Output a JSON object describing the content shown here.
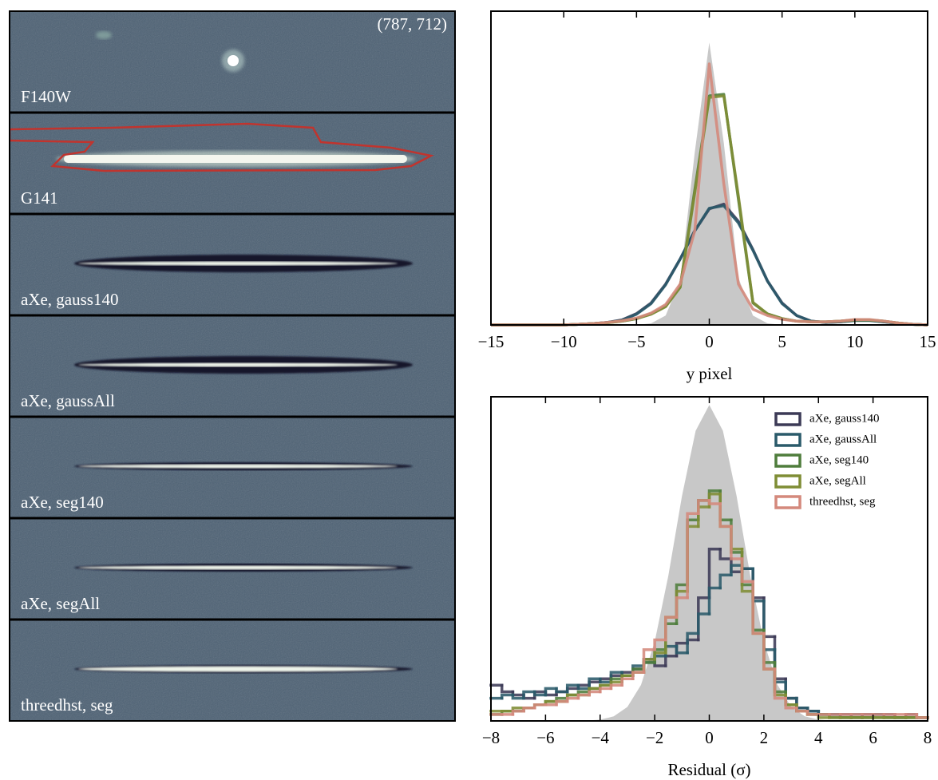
{
  "image_panels": {
    "coordinate": "(787, 712)",
    "labels": [
      "F140W",
      "G141",
      "aXe, gauss140",
      "aXe, gaussAll",
      "aXe, seg140",
      "aXe, segAll",
      "threedhst, seg"
    ]
  },
  "chart_data": [
    {
      "type": "line",
      "xlabel": "y pixel",
      "x": [
        -15,
        -14,
        -13,
        -12,
        -11,
        -10,
        -9,
        -8,
        -7,
        -6,
        -5,
        -4,
        -3,
        -2,
        -1,
        0,
        1,
        2,
        3,
        4,
        5,
        6,
        7,
        8,
        9,
        10,
        11,
        12,
        13,
        14,
        15
      ],
      "series": [
        {
          "color": "#c8c8c8",
          "fill": true,
          "values": [
            0,
            0,
            0,
            0,
            0,
            0,
            0,
            0,
            0,
            0,
            0,
            0.005,
            0.03,
            0.14,
            0.55,
            0.9,
            0.58,
            0.15,
            0.03,
            0.005,
            0,
            0,
            0,
            0,
            0,
            0,
            0,
            0,
            0,
            0,
            0
          ]
        },
        {
          "color": "#3c3a56",
          "values": [
            0,
            0,
            0,
            0,
            0,
            0,
            0.002,
            0.004,
            0.008,
            0.016,
            0.036,
            0.07,
            0.13,
            0.21,
            0.3,
            0.37,
            0.385,
            0.33,
            0.24,
            0.14,
            0.07,
            0.03,
            0.012,
            0.008,
            0.01,
            0.015,
            0.015,
            0.01,
            0.005,
            0.002,
            0
          ]
        },
        {
          "color": "#2a5a6a",
          "values": [
            0,
            0,
            0,
            0,
            0,
            0,
            0.002,
            0.004,
            0.008,
            0.015,
            0.034,
            0.068,
            0.128,
            0.21,
            0.3,
            0.372,
            0.38,
            0.325,
            0.238,
            0.14,
            0.068,
            0.03,
            0.012,
            0.008,
            0.01,
            0.014,
            0.014,
            0.01,
            0.005,
            0.002,
            0
          ]
        },
        {
          "color": "#4f7d3c",
          "values": [
            0,
            0,
            0,
            0,
            0,
            0,
            0.002,
            0.004,
            0.007,
            0.012,
            0.02,
            0.035,
            0.06,
            0.12,
            0.43,
            0.73,
            0.735,
            0.4,
            0.07,
            0.035,
            0.02,
            0.012,
            0.01,
            0.01,
            0.012,
            0.016,
            0.016,
            0.012,
            0.006,
            0.002,
            0
          ]
        },
        {
          "color": "#7f8d35",
          "values": [
            0,
            0,
            0,
            0,
            0,
            0,
            0.002,
            0.004,
            0.007,
            0.012,
            0.02,
            0.034,
            0.058,
            0.12,
            0.42,
            0.725,
            0.73,
            0.41,
            0.072,
            0.035,
            0.02,
            0.012,
            0.01,
            0.01,
            0.012,
            0.016,
            0.016,
            0.012,
            0.006,
            0.002,
            0
          ]
        },
        {
          "color": "#d4897c",
          "values": [
            0,
            0,
            0,
            0,
            0,
            0,
            0.002,
            0.004,
            0.008,
            0.013,
            0.022,
            0.038,
            0.065,
            0.13,
            0.3,
            0.832,
            0.45,
            0.13,
            0.05,
            0.03,
            0.018,
            0.012,
            0.01,
            0.01,
            0.012,
            0.017,
            0.017,
            0.012,
            0.006,
            0.002,
            0
          ]
        }
      ],
      "xlim": [
        -15,
        15
      ],
      "ylim": [
        0,
        1
      ],
      "xticks": [
        {
          "value": -15,
          "label": "−15"
        },
        {
          "value": -10,
          "label": "−10"
        },
        {
          "value": -5,
          "label": "−5"
        },
        0,
        5,
        10,
        15
      ]
    },
    {
      "type": "histogram",
      "xlabel": "Residual (σ)",
      "bins": [
        -8,
        -7.6,
        -7.2,
        -6.8,
        -6.4,
        -6,
        -5.6,
        -5.2,
        -4.8,
        -4.4,
        -4,
        -3.6,
        -3.2,
        -2.8,
        -2.4,
        -2,
        -1.6,
        -1.2,
        -0.8,
        -0.4,
        0,
        0.4,
        0.8,
        1.2,
        1.6,
        2,
        2.4,
        2.8,
        3.2,
        3.6,
        4,
        4.4,
        4.8,
        5.2,
        5.6,
        6,
        6.4,
        6.8,
        7.2,
        7.6,
        8
      ],
      "reference": {
        "color": "#c8c8c8",
        "x": [
          -8,
          -7.5,
          -7,
          -6.5,
          -6,
          -5.5,
          -5,
          -4.5,
          -4,
          -3.5,
          -3,
          -2.5,
          -2,
          -1.5,
          -1,
          -0.5,
          0,
          0.5,
          1,
          1.5,
          2,
          2.5,
          3,
          3.5,
          4,
          4.5,
          5,
          5.5,
          6,
          6.5,
          7,
          7.5,
          8
        ],
        "values": [
          0,
          0,
          0,
          0,
          0,
          0,
          0,
          0.001,
          0.004,
          0.014,
          0.043,
          0.111,
          0.244,
          0.448,
          0.694,
          0.895,
          0.975,
          0.895,
          0.694,
          0.448,
          0.244,
          0.111,
          0.043,
          0.014,
          0.004,
          0.001,
          0,
          0,
          0,
          0,
          0,
          0,
          0
        ]
      },
      "series": [
        {
          "name": "aXe, gauss140",
          "color": "#3c3a56",
          "values": [
            0.11,
            0.09,
            0.08,
            0.07,
            0.09,
            0.08,
            0.09,
            0.1,
            0.11,
            0.12,
            0.13,
            0.14,
            0.15,
            0.16,
            0.19,
            0.17,
            0.2,
            0.24,
            0.25,
            0.38,
            0.53,
            0.5,
            0.46,
            0.47,
            0.38,
            0.26,
            0.13,
            0.07,
            0.04,
            0.03,
            0.02,
            0.02,
            0.02,
            0.01,
            0.02,
            0.02,
            0.02,
            0.01,
            0.02,
            0.01
          ]
        },
        {
          "name": "aXe, gaussAll",
          "color": "#2a5a6a",
          "values": [
            0.07,
            0.08,
            0.07,
            0.09,
            0.08,
            0.1,
            0.09,
            0.11,
            0.1,
            0.13,
            0.12,
            0.15,
            0.14,
            0.17,
            0.18,
            0.2,
            0.23,
            0.21,
            0.27,
            0.33,
            0.41,
            0.45,
            0.48,
            0.47,
            0.37,
            0.22,
            0.12,
            0.07,
            0.04,
            0.03,
            0.02,
            0.02,
            0.01,
            0.02,
            0.01,
            0.02,
            0.01,
            0.01,
            0.01,
            0.01
          ]
        },
        {
          "name": "aXe, seg140",
          "color": "#4f7d3c",
          "values": [
            0.02,
            0.03,
            0.03,
            0.04,
            0.05,
            0.06,
            0.07,
            0.08,
            0.09,
            0.1,
            0.11,
            0.13,
            0.14,
            0.16,
            0.18,
            0.22,
            0.3,
            0.42,
            0.62,
            0.68,
            0.71,
            0.62,
            0.52,
            0.42,
            0.28,
            0.18,
            0.09,
            0.05,
            0.03,
            0.02,
            0.02,
            0.01,
            0.01,
            0.01,
            0.01,
            0.01,
            0.01,
            0.01,
            0.01,
            0.01
          ]
        },
        {
          "name": "aXe, segAll",
          "color": "#7f8d35",
          "values": [
            0.03,
            0.03,
            0.04,
            0.04,
            0.05,
            0.06,
            0.06,
            0.08,
            0.08,
            0.1,
            0.11,
            0.12,
            0.14,
            0.15,
            0.19,
            0.21,
            0.32,
            0.4,
            0.6,
            0.66,
            0.7,
            0.6,
            0.53,
            0.4,
            0.27,
            0.16,
            0.08,
            0.05,
            0.03,
            0.02,
            0.01,
            0.01,
            0.01,
            0.01,
            0.01,
            0.01,
            0.01,
            0.01,
            0.01,
            0.01
          ]
        },
        {
          "name": "threedhst, seg",
          "color": "#d4897c",
          "values": [
            0.02,
            0.02,
            0.03,
            0.04,
            0.05,
            0.05,
            0.06,
            0.07,
            0.08,
            0.09,
            0.1,
            0.11,
            0.13,
            0.15,
            0.22,
            0.25,
            0.32,
            0.38,
            0.64,
            0.68,
            0.67,
            0.6,
            0.5,
            0.43,
            0.27,
            0.16,
            0.07,
            0.04,
            0.03,
            0.02,
            0.02,
            0.02,
            0.02,
            0.02,
            0.02,
            0.02,
            0.02,
            0.02,
            0.02,
            0.01
          ]
        }
      ],
      "xlim": [
        -8,
        8
      ],
      "ylim": [
        0,
        1
      ],
      "xticks": [
        {
          "value": -8,
          "label": "−8"
        },
        {
          "value": -6,
          "label": "−6"
        },
        {
          "value": -4,
          "label": "−4"
        },
        {
          "value": -2,
          "label": "−2"
        },
        0,
        2,
        4,
        6,
        8
      ],
      "legend": "upper right"
    }
  ]
}
